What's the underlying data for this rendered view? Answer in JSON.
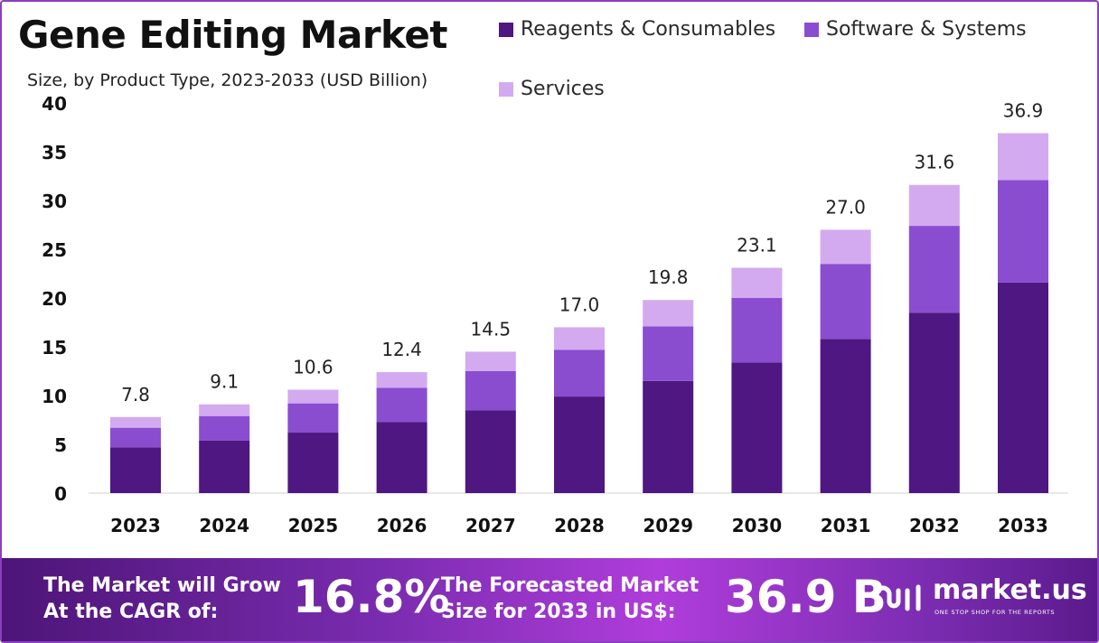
{
  "title": "Gene Editing Market",
  "subtitle": "Size, by Product Type, 2023-2033 (USD Billion)",
  "legend": [
    {
      "label": "Reagents & Consumables",
      "color": "#4e1782"
    },
    {
      "label": "Software & Systems",
      "color": "#8a4dcf"
    },
    {
      "label": "Services",
      "color": "#d3aaf0"
    }
  ],
  "chart_data": {
    "type": "bar",
    "stacked": true,
    "categories": [
      "2023",
      "2024",
      "2025",
      "2026",
      "2027",
      "2028",
      "2029",
      "2030",
      "2031",
      "2032",
      "2033"
    ],
    "series": [
      {
        "name": "Reagents & Consumables",
        "color": "#4e1782",
        "values": [
          4.7,
          5.4,
          6.2,
          7.3,
          8.5,
          9.9,
          11.5,
          13.4,
          15.8,
          18.5,
          21.6
        ]
      },
      {
        "name": "Software & Systems",
        "color": "#8a4dcf",
        "values": [
          2.0,
          2.5,
          3.0,
          3.5,
          4.0,
          4.8,
          5.6,
          6.6,
          7.7,
          8.9,
          10.5
        ]
      },
      {
        "name": "Services",
        "color": "#d3aaf0",
        "values": [
          1.1,
          1.2,
          1.4,
          1.6,
          2.0,
          2.3,
          2.7,
          3.1,
          3.5,
          4.2,
          4.8
        ]
      }
    ],
    "totals": [
      "7.8",
      "9.1",
      "10.6",
      "12.4",
      "14.5",
      "17.0",
      "19.8",
      "23.1",
      "27.0",
      "31.6",
      "36.9"
    ],
    "yticks": [
      "0",
      "5",
      "10",
      "15",
      "20",
      "25",
      "30",
      "35",
      "40"
    ],
    "ylim": [
      0,
      40
    ],
    "xlabel": "",
    "ylabel": "",
    "grid": false,
    "legend_position": "top-right"
  },
  "footer": {
    "cagr_label_line1": "The Market will Grow",
    "cagr_label_line2": "At the CAGR of:",
    "cagr_value": "16.8%",
    "forecast_label_line1": "The Forecasted Market",
    "forecast_label_line2": "Size for 2033 in US$:",
    "forecast_value": "36.9 B",
    "brand_name": "market.us",
    "brand_tagline": "ONE STOP SHOP FOR THE REPORTS"
  }
}
